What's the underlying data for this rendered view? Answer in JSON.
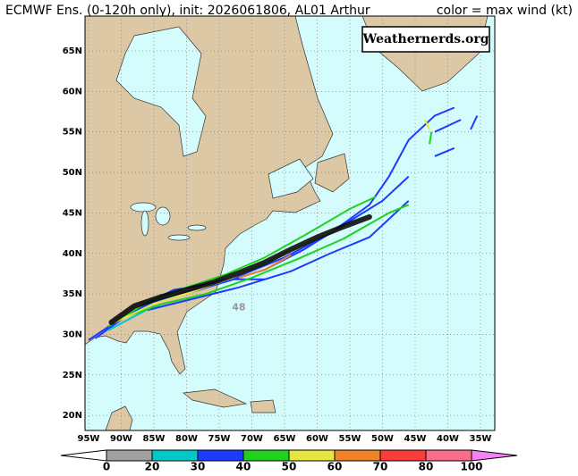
{
  "header": {
    "title": "ECMWF Ens. (0-120h only), init: 2026061806, AL01 Arthur",
    "legend_title": "color = max wind (kt)"
  },
  "map": {
    "watermark": "Weathernerds.org",
    "lon_ticks": [
      {
        "value": -95,
        "label": "95W"
      },
      {
        "value": -90,
        "label": "90W"
      },
      {
        "value": -85,
        "label": "85W"
      },
      {
        "value": -80,
        "label": "80W"
      },
      {
        "value": -75,
        "label": "75W"
      },
      {
        "value": -70,
        "label": "70W"
      },
      {
        "value": -65,
        "label": "65W"
      },
      {
        "value": -60,
        "label": "60W"
      },
      {
        "value": -55,
        "label": "55W"
      },
      {
        "value": -50,
        "label": "50W"
      },
      {
        "value": -45,
        "label": "45W"
      },
      {
        "value": -40,
        "label": "40W"
      },
      {
        "value": -35,
        "label": "35W"
      }
    ],
    "lat_ticks": [
      {
        "value": 65,
        "label": "65N"
      },
      {
        "value": 60,
        "label": "60N"
      },
      {
        "value": 55,
        "label": "55N"
      },
      {
        "value": 50,
        "label": "50N"
      },
      {
        "value": 45,
        "label": "45N"
      },
      {
        "value": 40,
        "label": "40N"
      },
      {
        "value": 35,
        "label": "35N"
      },
      {
        "value": 30,
        "label": "30N"
      },
      {
        "value": 25,
        "label": "25N"
      },
      {
        "value": 20,
        "label": "20N"
      }
    ],
    "tracks": [
      {
        "wind": 35,
        "lon": [
          -95,
          -90,
          -85,
          -80,
          -74,
          -68,
          -62,
          -56,
          -50,
          -46
        ],
        "lat": [
          29.3,
          32,
          34,
          35.2,
          36.5,
          38,
          40.5,
          43.5,
          46.5,
          49.5
        ]
      },
      {
        "wind": 35,
        "lon": [
          -94,
          -88,
          -82,
          -78,
          -72,
          -65,
          -58,
          -52,
          -49,
          -46,
          -42,
          -39
        ],
        "lat": [
          29.5,
          33,
          35.5,
          36,
          37.2,
          39.5,
          42.5,
          46,
          49.5,
          54,
          57,
          58
        ]
      },
      {
        "wind": 35,
        "lon": [
          -86,
          -80,
          -72,
          -64,
          -58,
          -52,
          -46
        ],
        "lat": [
          33,
          34.2,
          35.8,
          37.8,
          40,
          42,
          46.5
        ]
      },
      {
        "wind": 35,
        "lon": [
          -85,
          -78,
          -73,
          -68
        ],
        "lat": [
          34,
          35.5,
          36.8,
          36.8
        ]
      },
      {
        "wind": 35,
        "lon": [
          -42,
          -38
        ],
        "lat": [
          55,
          56.5
        ]
      },
      {
        "wind": 35,
        "lon": [
          -42,
          -39
        ],
        "lat": [
          52,
          53
        ]
      },
      {
        "wind": 35,
        "lon": [
          -36.5,
          -35.5
        ],
        "lat": [
          55.3,
          57
        ]
      },
      {
        "wind": 25,
        "lon": [
          -92,
          -89,
          -85
        ],
        "lat": [
          30.5,
          31.8,
          33.5
        ]
      },
      {
        "wind": 45,
        "lon": [
          -92,
          -86,
          -80,
          -74,
          -68,
          -62,
          -55,
          -51
        ],
        "lat": [
          31,
          34,
          35.8,
          37.4,
          39.5,
          42.2,
          45.5,
          47
        ]
      },
      {
        "wind": 45,
        "lon": [
          -90,
          -84,
          -77,
          -70,
          -63,
          -56,
          -49,
          -46
        ],
        "lat": [
          32,
          33.7,
          35,
          37,
          39.3,
          41.8,
          45,
          46
        ]
      },
      {
        "wind": 45,
        "lon": [
          -42.8,
          -42.5
        ],
        "lat": [
          53.5,
          55
        ]
      },
      {
        "wind": 55,
        "lon": [
          -91,
          -85,
          -79,
          -73,
          -67,
          -61,
          -57
        ],
        "lat": [
          31.5,
          33.8,
          35.3,
          37,
          39.2,
          41.5,
          43
        ]
      },
      {
        "wind": 55,
        "lon": [
          -43.5,
          -42.8
        ],
        "lat": [
          56.5,
          55.3
        ]
      },
      {
        "wind": 65,
        "lon": [
          -72,
          -68,
          -64
        ],
        "lat": [
          37,
          38,
          39.8
        ]
      }
    ],
    "mean_track": {
      "color": "#000000",
      "lon": [
        -91.5,
        -88,
        -84,
        -80,
        -76,
        -72,
        -68,
        -64,
        -60,
        -56,
        -52
      ],
      "lat": [
        31.5,
        33.5,
        34.6,
        35.5,
        36.4,
        37.6,
        38.9,
        40.5,
        42,
        43.3,
        44.5
      ]
    },
    "annotations": [
      {
        "text": "48",
        "lon": -72,
        "lat": 33.3
      }
    ]
  },
  "colorbar": {
    "ticks": [
      0,
      20,
      30,
      40,
      50,
      60,
      70,
      80,
      100
    ],
    "colors": [
      "#ffffff",
      "#a0a0a0",
      "#00c8c8",
      "#1e3cff",
      "#1ed21e",
      "#e6e641",
      "#f08228",
      "#fa3c3c",
      "#fa6e8c",
      "#f582f5"
    ]
  }
}
